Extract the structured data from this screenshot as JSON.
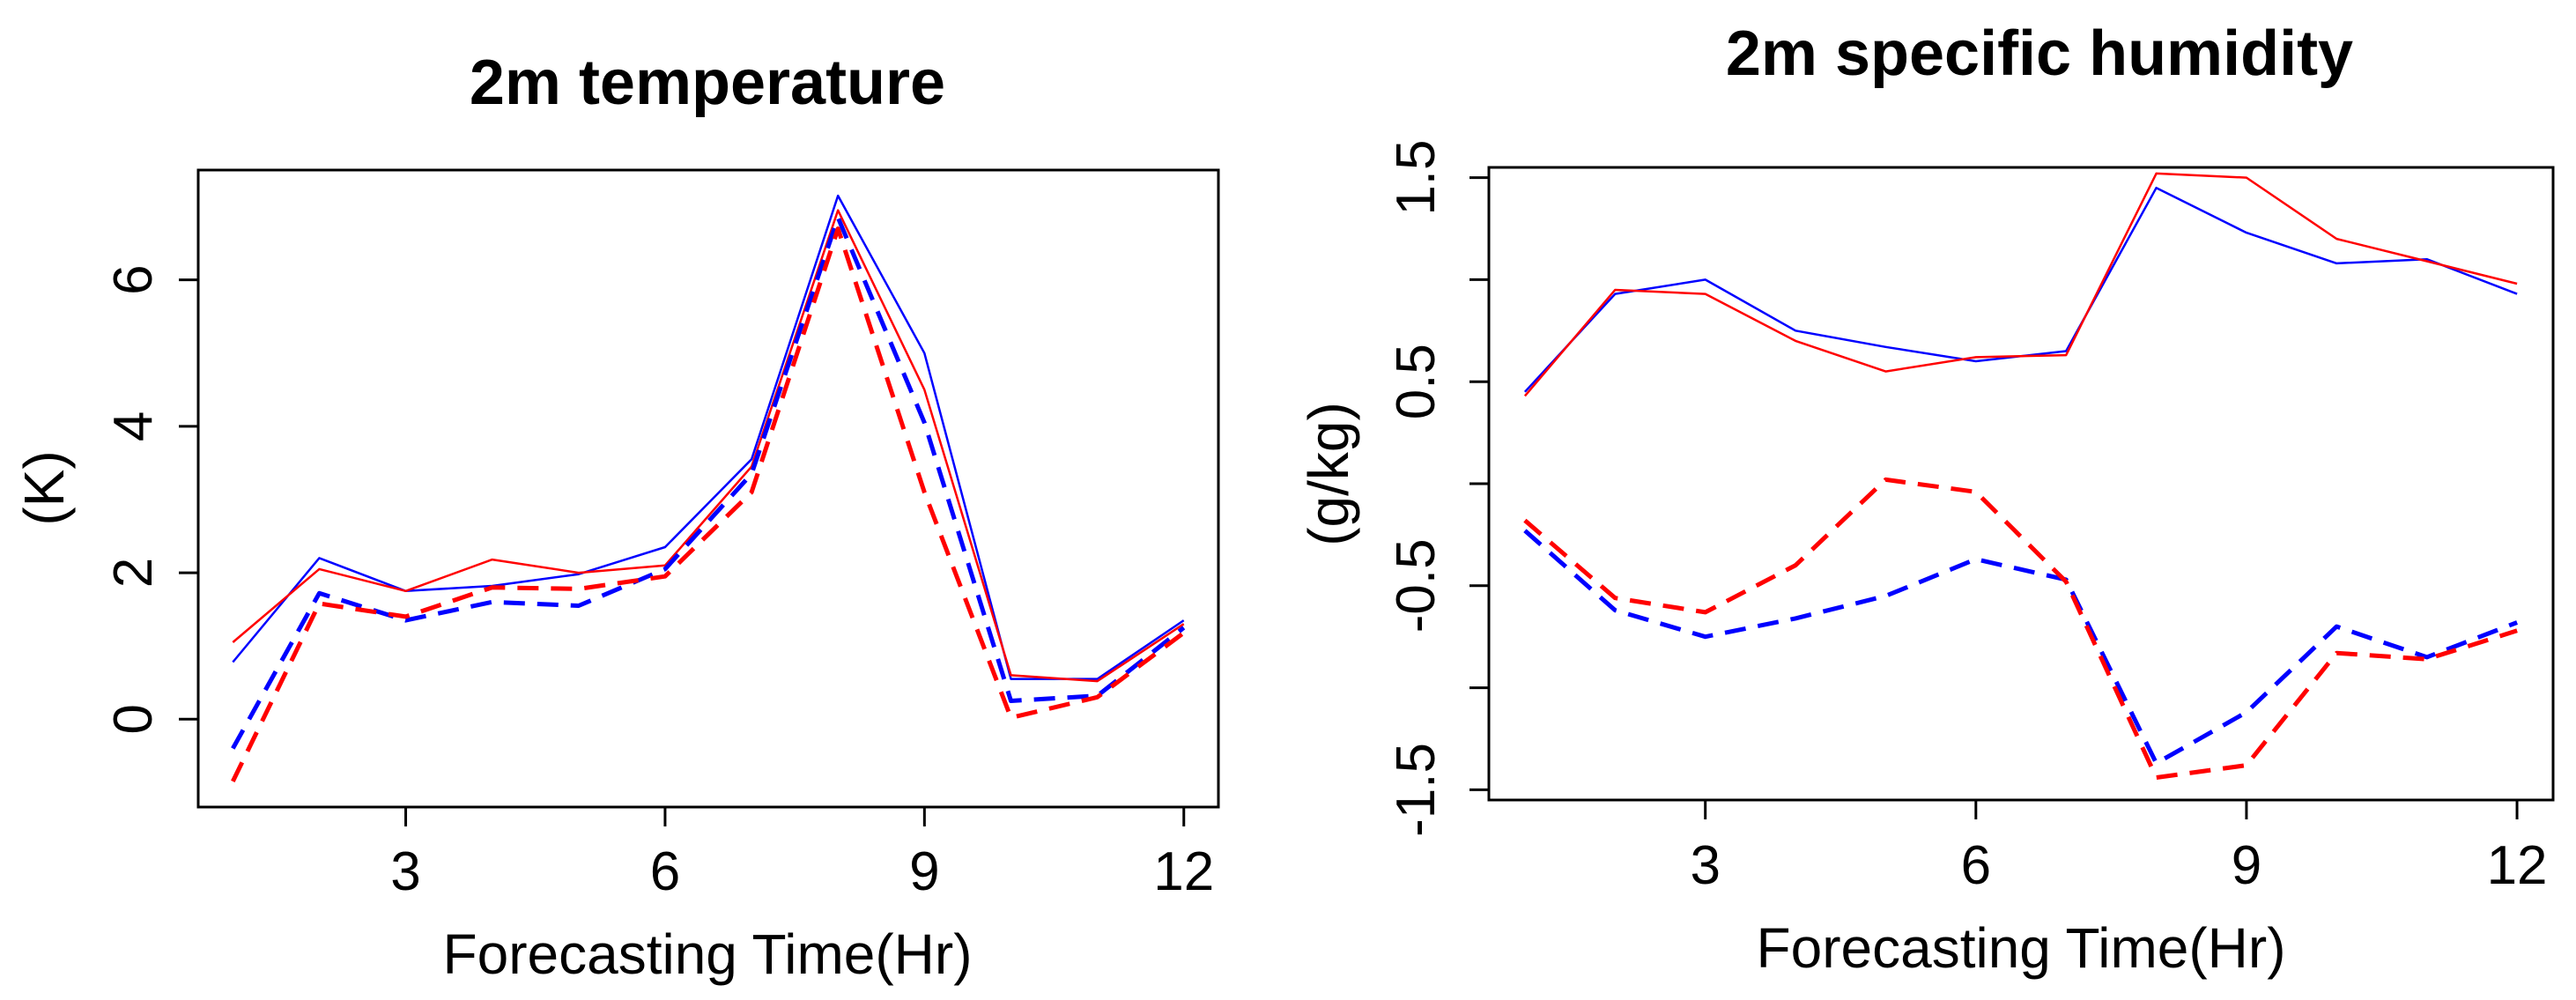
{
  "chart_data": [
    {
      "type": "line",
      "title": "2m temperature",
      "xlabel": "Forecasting Time(Hr)",
      "ylabel": "(K)",
      "x": [
        1,
        2,
        3,
        4,
        5,
        6,
        7,
        8,
        9,
        10,
        11,
        12
      ],
      "xlim": [
        0.6,
        12.4
      ],
      "ylim": [
        -1.2,
        7.5
      ],
      "xticks": [
        3,
        6,
        9,
        12
      ],
      "xtick_labels": [
        "3",
        "6",
        "9",
        "12"
      ],
      "yticks": [
        0,
        2,
        4,
        6
      ],
      "ytick_labels": [
        "0",
        "2",
        "4",
        "6"
      ],
      "grid": false,
      "series": [
        {
          "name": "blue solid",
          "color": "#0000ff",
          "style": "solid",
          "values": [
            0.78,
            2.2,
            1.75,
            1.82,
            1.98,
            2.35,
            3.55,
            7.15,
            5.0,
            0.55,
            0.55,
            1.35
          ]
        },
        {
          "name": "red solid",
          "color": "#ff0000",
          "style": "solid",
          "values": [
            1.05,
            2.05,
            1.75,
            2.18,
            2.0,
            2.1,
            3.45,
            6.95,
            4.5,
            0.6,
            0.52,
            1.3
          ]
        },
        {
          "name": "blue dashed",
          "color": "#0000ff",
          "style": "dashed",
          "values": [
            -0.4,
            1.72,
            1.35,
            1.6,
            1.55,
            2.05,
            3.35,
            6.85,
            4.05,
            0.25,
            0.32,
            1.25
          ]
        },
        {
          "name": "red dashed",
          "color": "#ff0000",
          "style": "dashed",
          "values": [
            -0.85,
            1.58,
            1.4,
            1.8,
            1.78,
            1.95,
            3.1,
            6.7,
            3.1,
            0.02,
            0.3,
            1.18
          ]
        }
      ]
    },
    {
      "type": "line",
      "title": "2m specific humidity",
      "xlabel": "Forecasting Time(Hr)",
      "ylabel": "(g/kg)",
      "x": [
        1,
        2,
        3,
        4,
        5,
        6,
        7,
        8,
        9,
        10,
        11,
        12
      ],
      "xlim": [
        0.6,
        12.4
      ],
      "ylim": [
        -1.55,
        1.55
      ],
      "xticks": [
        3,
        6,
        9,
        12
      ],
      "xtick_labels": [
        "3",
        "6",
        "9",
        "12"
      ],
      "yticks": [
        -1.5,
        -1.0,
        -0.5,
        0.0,
        0.5,
        1.0,
        1.5
      ],
      "ytick_labels": [
        "-1.5",
        "",
        "-0.5",
        "",
        "0.5",
        "",
        "1.5"
      ],
      "grid": false,
      "series": [
        {
          "name": "blue solid",
          "color": "#0000ff",
          "style": "solid",
          "values": [
            0.45,
            0.93,
            1.0,
            0.75,
            0.67,
            0.6,
            0.65,
            1.45,
            1.23,
            1.08,
            1.1,
            0.93
          ]
        },
        {
          "name": "red solid",
          "color": "#ff0000",
          "style": "solid",
          "values": [
            0.43,
            0.95,
            0.93,
            0.7,
            0.55,
            0.62,
            0.63,
            1.52,
            1.5,
            1.2,
            1.09,
            0.98
          ]
        },
        {
          "name": "blue dashed",
          "color": "#0000ff",
          "style": "dashed",
          "values": [
            -0.23,
            -0.62,
            -0.75,
            -0.66,
            -0.55,
            -0.37,
            -0.47,
            -1.37,
            -1.12,
            -0.7,
            -0.85,
            -0.68
          ]
        },
        {
          "name": "red dashed",
          "color": "#ff0000",
          "style": "dashed",
          "values": [
            -0.18,
            -0.56,
            -0.63,
            -0.4,
            0.02,
            -0.04,
            -0.48,
            -1.44,
            -1.38,
            -0.83,
            -0.86,
            -0.72
          ]
        }
      ]
    }
  ]
}
